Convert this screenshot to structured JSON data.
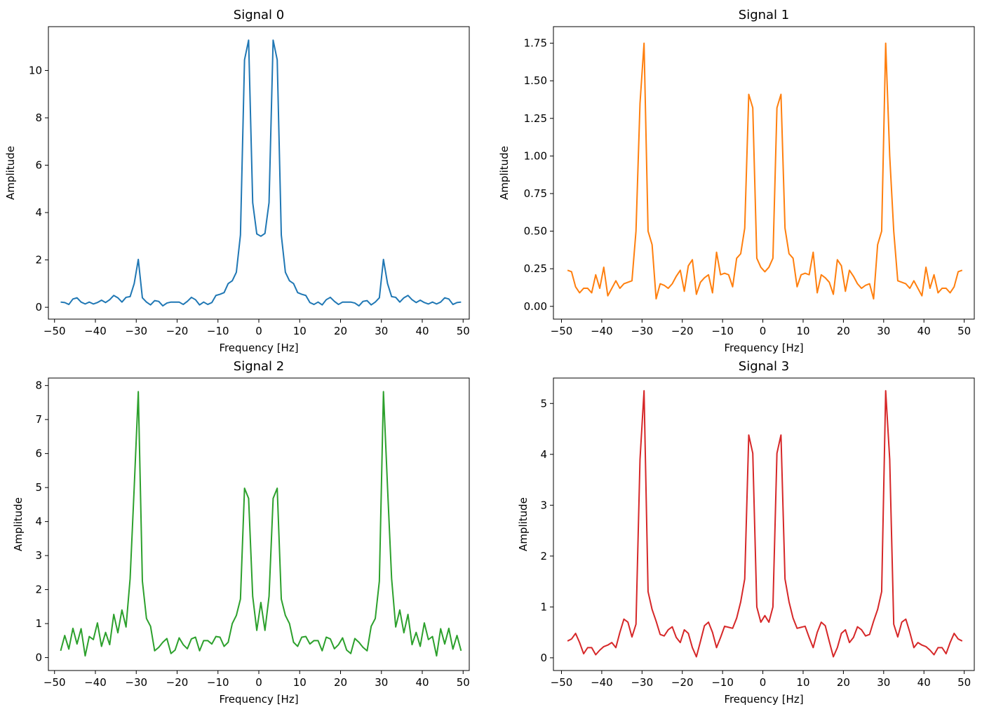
{
  "chart_data": [
    {
      "type": "line",
      "title": "Signal 0",
      "xlabel": "Frequency [Hz]",
      "ylabel": "Amplitude",
      "xlim": [
        -51.5,
        51.5
      ],
      "ylim": [
        -0.5,
        11.85
      ],
      "xticks": [
        -50,
        -40,
        -30,
        -20,
        -10,
        0,
        10,
        20,
        30,
        40,
        50
      ],
      "xtick_labels": [
        "−50",
        "−40",
        "−30",
        "−20",
        "−10",
        "0",
        "10",
        "20",
        "30",
        "40",
        "50"
      ],
      "yticks": [
        0,
        2,
        4,
        6,
        8,
        10
      ],
      "ytick_labels": [
        "0",
        "2",
        "4",
        "6",
        "8",
        "10"
      ],
      "color": "#1f77b4",
      "x": [
        -48.5,
        -47.5,
        -46.5,
        -45.5,
        -44.5,
        -43.5,
        -42.5,
        -41.5,
        -40.5,
        -39.5,
        -38.5,
        -37.5,
        -36.5,
        -35.5,
        -34.5,
        -33.5,
        -32.5,
        -31.5,
        -30.5,
        -29.5,
        -28.5,
        -27.5,
        -26.5,
        -25.5,
        -24.5,
        -23.5,
        -22.5,
        -21.5,
        -20.5,
        -19.5,
        -18.5,
        -17.5,
        -16.5,
        -15.5,
        -14.5,
        -13.5,
        -12.5,
        -11.5,
        -10.5,
        -9.5,
        -8.5,
        -7.5,
        -6.5,
        -5.5,
        -4.5,
        -3.5,
        -2.5,
        -1.5,
        -0.5,
        0.5,
        1.5,
        2.5,
        3.5,
        4.5,
        5.5,
        6.5,
        7.5,
        8.5,
        9.5,
        10.5,
        11.5,
        12.5,
        13.5,
        14.5,
        15.5,
        16.5,
        17.5,
        18.5,
        19.5,
        20.5,
        21.5,
        22.5,
        23.5,
        24.5,
        25.5,
        26.5,
        27.5,
        28.5,
        29.5,
        30.5,
        31.5,
        32.5,
        33.5,
        34.5,
        35.5,
        36.5,
        37.5,
        38.5,
        39.5,
        40.5,
        41.5,
        42.5,
        43.5,
        44.5,
        45.5,
        46.5,
        47.5,
        48.5,
        49.5
      ],
      "y": [
        0.22,
        0.2,
        0.12,
        0.35,
        0.4,
        0.22,
        0.14,
        0.22,
        0.14,
        0.2,
        0.3,
        0.2,
        0.32,
        0.5,
        0.4,
        0.22,
        0.42,
        0.45,
        1.0,
        2.02,
        0.4,
        0.22,
        0.1,
        0.28,
        0.25,
        0.06,
        0.18,
        0.22,
        0.22,
        0.22,
        0.12,
        0.25,
        0.42,
        0.32,
        0.1,
        0.22,
        0.12,
        0.2,
        0.5,
        0.55,
        0.62,
        1.0,
        1.12,
        1.48,
        3.05,
        10.45,
        11.28,
        4.42,
        3.1,
        3.0,
        3.12,
        4.42,
        11.28,
        10.45,
        3.05,
        1.48,
        1.12,
        1.0,
        0.62,
        0.55,
        0.5,
        0.2,
        0.12,
        0.22,
        0.1,
        0.32,
        0.42,
        0.25,
        0.12,
        0.22,
        0.22,
        0.22,
        0.18,
        0.06,
        0.25,
        0.28,
        0.1,
        0.22,
        0.4,
        2.02,
        1.0,
        0.45,
        0.42,
        0.22,
        0.4,
        0.5,
        0.32,
        0.2,
        0.3,
        0.2,
        0.14,
        0.22,
        0.14,
        0.22,
        0.4,
        0.35,
        0.12,
        0.2,
        0.22
      ]
    },
    {
      "type": "line",
      "title": "Signal 1",
      "xlabel": "Frequency [Hz]",
      "ylabel": "Amplitude",
      "xlim": [
        -52.0,
        52.5
      ],
      "ylim": [
        -0.085,
        1.86
      ],
      "xticks": [
        -50,
        -40,
        -30,
        -20,
        -10,
        0,
        10,
        20,
        30,
        40,
        50
      ],
      "xtick_labels": [
        "−50",
        "−40",
        "−30",
        "−20",
        "−10",
        "0",
        "10",
        "20",
        "30",
        "40",
        "50"
      ],
      "yticks": [
        0,
        0.25,
        0.5,
        0.75,
        1.0,
        1.25,
        1.5,
        1.75
      ],
      "ytick_labels": [
        "0.00",
        "0.25",
        "0.50",
        "0.75",
        "1.00",
        "1.25",
        "1.50",
        "1.75"
      ],
      "color": "#ff7f0e",
      "x": [
        -48.5,
        -47.5,
        -46.5,
        -45.5,
        -44.5,
        -43.5,
        -42.5,
        -41.5,
        -40.5,
        -39.5,
        -38.5,
        -37.5,
        -36.5,
        -35.5,
        -34.5,
        -33.5,
        -32.5,
        -31.5,
        -30.5,
        -29.5,
        -28.5,
        -27.5,
        -26.5,
        -25.5,
        -24.5,
        -23.5,
        -22.5,
        -21.5,
        -20.5,
        -19.5,
        -18.5,
        -17.5,
        -16.5,
        -15.5,
        -14.5,
        -13.5,
        -12.5,
        -11.5,
        -10.5,
        -9.5,
        -8.5,
        -7.5,
        -6.5,
        -5.5,
        -4.5,
        -3.5,
        -2.5,
        -1.5,
        -0.5,
        0.5,
        1.5,
        2.5,
        3.5,
        4.5,
        5.5,
        6.5,
        7.5,
        8.5,
        9.5,
        10.5,
        11.5,
        12.5,
        13.5,
        14.5,
        15.5,
        16.5,
        17.5,
        18.5,
        19.5,
        20.5,
        21.5,
        22.5,
        23.5,
        24.5,
        25.5,
        26.5,
        27.5,
        28.5,
        29.5,
        30.5,
        31.5,
        32.5,
        33.5,
        34.5,
        35.5,
        36.5,
        37.5,
        38.5,
        39.5,
        40.5,
        41.5,
        42.5,
        43.5,
        44.5,
        45.5,
        46.5,
        47.5,
        48.5,
        49.5
      ],
      "y": [
        0.24,
        0.23,
        0.13,
        0.09,
        0.12,
        0.12,
        0.09,
        0.21,
        0.12,
        0.26,
        0.07,
        0.12,
        0.17,
        0.12,
        0.15,
        0.16,
        0.17,
        0.5,
        1.35,
        1.75,
        0.5,
        0.41,
        0.05,
        0.15,
        0.14,
        0.12,
        0.15,
        0.2,
        0.24,
        0.1,
        0.27,
        0.31,
        0.08,
        0.16,
        0.19,
        0.21,
        0.09,
        0.36,
        0.21,
        0.22,
        0.21,
        0.13,
        0.32,
        0.35,
        0.52,
        1.41,
        1.32,
        0.32,
        0.26,
        0.23,
        0.26,
        0.32,
        1.32,
        1.41,
        0.52,
        0.35,
        0.32,
        0.13,
        0.21,
        0.22,
        0.21,
        0.36,
        0.09,
        0.21,
        0.19,
        0.16,
        0.08,
        0.31,
        0.27,
        0.1,
        0.24,
        0.2,
        0.15,
        0.12,
        0.14,
        0.15,
        0.05,
        0.41,
        0.5,
        1.75,
        1.0,
        0.5,
        0.17,
        0.16,
        0.15,
        0.12,
        0.17,
        0.12,
        0.07,
        0.26,
        0.12,
        0.21,
        0.09,
        0.12,
        0.12,
        0.09,
        0.13,
        0.23,
        0.24
      ]
    },
    {
      "type": "line",
      "title": "Signal 2",
      "xlabel": "Frequency [Hz]",
      "ylabel": "Amplitude",
      "xlim": [
        -51.5,
        51.5
      ],
      "ylim": [
        -0.38,
        8.22
      ],
      "xticks": [
        -50,
        -40,
        -30,
        -20,
        -10,
        0,
        10,
        20,
        30,
        40,
        50
      ],
      "xtick_labels": [
        "−50",
        "−40",
        "−30",
        "−20",
        "−10",
        "0",
        "10",
        "20",
        "30",
        "40",
        "50"
      ],
      "yticks": [
        0,
        1,
        2,
        3,
        4,
        5,
        6,
        7,
        8
      ],
      "ytick_labels": [
        "0",
        "1",
        "2",
        "3",
        "4",
        "5",
        "6",
        "7",
        "8"
      ],
      "color": "#2ca02c",
      "x": [
        -48.5,
        -47.5,
        -46.5,
        -45.5,
        -44.5,
        -43.5,
        -42.5,
        -41.5,
        -40.5,
        -39.5,
        -38.5,
        -37.5,
        -36.5,
        -35.5,
        -34.5,
        -33.5,
        -32.5,
        -31.5,
        -30.5,
        -29.5,
        -28.5,
        -27.5,
        -26.5,
        -25.5,
        -24.5,
        -23.5,
        -22.5,
        -21.5,
        -20.5,
        -19.5,
        -18.5,
        -17.5,
        -16.5,
        -15.5,
        -14.5,
        -13.5,
        -12.5,
        -11.5,
        -10.5,
        -9.5,
        -8.5,
        -7.5,
        -6.5,
        -5.5,
        -4.5,
        -3.5,
        -2.5,
        -1.5,
        -0.5,
        0.5,
        1.5,
        2.5,
        3.5,
        4.5,
        5.5,
        6.5,
        7.5,
        8.5,
        9.5,
        10.5,
        11.5,
        12.5,
        13.5,
        14.5,
        15.5,
        16.5,
        17.5,
        18.5,
        19.5,
        20.5,
        21.5,
        22.5,
        23.5,
        24.5,
        25.5,
        26.5,
        27.5,
        28.5,
        29.5,
        30.5,
        31.5,
        32.5,
        33.5,
        34.5,
        35.5,
        36.5,
        37.5,
        38.5,
        39.5,
        40.5,
        41.5,
        42.5,
        43.5,
        44.5,
        45.5,
        46.5,
        47.5,
        48.5,
        49.5
      ],
      "y": [
        0.2,
        0.65,
        0.25,
        0.86,
        0.4,
        0.85,
        0.05,
        0.62,
        0.53,
        1.02,
        0.33,
        0.74,
        0.38,
        1.27,
        0.73,
        1.4,
        0.9,
        2.32,
        5.0,
        7.82,
        2.25,
        1.15,
        0.92,
        0.2,
        0.3,
        0.45,
        0.56,
        0.12,
        0.22,
        0.58,
        0.38,
        0.26,
        0.55,
        0.6,
        0.2,
        0.5,
        0.5,
        0.4,
        0.62,
        0.6,
        0.33,
        0.45,
        1.0,
        1.24,
        1.72,
        4.98,
        4.68,
        1.8,
        0.8,
        1.62,
        0.8,
        1.8,
        4.68,
        4.98,
        1.72,
        1.24,
        1.0,
        0.45,
        0.33,
        0.6,
        0.62,
        0.4,
        0.5,
        0.5,
        0.2,
        0.6,
        0.55,
        0.26,
        0.38,
        0.58,
        0.22,
        0.12,
        0.56,
        0.45,
        0.3,
        0.2,
        0.92,
        1.15,
        2.25,
        7.82,
        5.0,
        2.32,
        0.9,
        1.4,
        0.73,
        1.27,
        0.38,
        0.74,
        0.33,
        1.02,
        0.53,
        0.62,
        0.05,
        0.85,
        0.4,
        0.86,
        0.25,
        0.65,
        0.2
      ]
    },
    {
      "type": "line",
      "title": "Signal 3",
      "xlabel": "Frequency [Hz]",
      "ylabel": "Amplitude",
      "xlim": [
        -52.0,
        52.5
      ],
      "ylim": [
        -0.25,
        5.5
      ],
      "xticks": [
        -50,
        -40,
        -30,
        -20,
        -10,
        0,
        10,
        20,
        30,
        40,
        50
      ],
      "xtick_labels": [
        "−50",
        "−40",
        "−30",
        "−20",
        "−10",
        "0",
        "10",
        "20",
        "30",
        "40",
        "50"
      ],
      "yticks": [
        0,
        1,
        2,
        3,
        4,
        5
      ],
      "ytick_labels": [
        "0",
        "1",
        "2",
        "3",
        "4",
        "5"
      ],
      "color": "#d62728",
      "x": [
        -48.5,
        -47.5,
        -46.5,
        -45.5,
        -44.5,
        -43.5,
        -42.5,
        -41.5,
        -40.5,
        -39.5,
        -38.5,
        -37.5,
        -36.5,
        -35.5,
        -34.5,
        -33.5,
        -32.5,
        -31.5,
        -30.5,
        -29.5,
        -28.5,
        -27.5,
        -26.5,
        -25.5,
        -24.5,
        -23.5,
        -22.5,
        -21.5,
        -20.5,
        -19.5,
        -18.5,
        -17.5,
        -16.5,
        -15.5,
        -14.5,
        -13.5,
        -12.5,
        -11.5,
        -10.5,
        -9.5,
        -8.5,
        -7.5,
        -6.5,
        -5.5,
        -4.5,
        -3.5,
        -2.5,
        -1.5,
        -0.5,
        0.5,
        1.5,
        2.5,
        3.5,
        4.5,
        5.5,
        6.5,
        7.5,
        8.5,
        9.5,
        10.5,
        11.5,
        12.5,
        13.5,
        14.5,
        15.5,
        16.5,
        17.5,
        18.5,
        19.5,
        20.5,
        21.5,
        22.5,
        23.5,
        24.5,
        25.5,
        26.5,
        27.5,
        28.5,
        29.5,
        30.5,
        31.5,
        32.5,
        33.5,
        34.5,
        35.5,
        36.5,
        37.5,
        38.5,
        39.5,
        40.5,
        41.5,
        42.5,
        43.5,
        44.5,
        45.5,
        46.5,
        47.5,
        48.5,
        49.5
      ],
      "y": [
        0.33,
        0.37,
        0.48,
        0.3,
        0.08,
        0.2,
        0.2,
        0.06,
        0.15,
        0.22,
        0.25,
        0.3,
        0.2,
        0.5,
        0.76,
        0.7,
        0.41,
        0.66,
        3.9,
        5.25,
        1.3,
        0.95,
        0.72,
        0.46,
        0.43,
        0.55,
        0.61,
        0.4,
        0.3,
        0.55,
        0.48,
        0.2,
        0.02,
        0.32,
        0.63,
        0.7,
        0.5,
        0.2,
        0.4,
        0.62,
        0.6,
        0.58,
        0.78,
        1.1,
        1.55,
        4.38,
        4.02,
        1.0,
        0.7,
        0.83,
        0.7,
        1.0,
        4.02,
        4.38,
        1.55,
        1.1,
        0.78,
        0.58,
        0.6,
        0.62,
        0.4,
        0.2,
        0.5,
        0.7,
        0.63,
        0.32,
        0.02,
        0.2,
        0.48,
        0.55,
        0.3,
        0.4,
        0.61,
        0.55,
        0.43,
        0.46,
        0.72,
        0.95,
        1.3,
        5.25,
        3.9,
        0.66,
        0.41,
        0.7,
        0.76,
        0.5,
        0.2,
        0.3,
        0.25,
        0.22,
        0.15,
        0.06,
        0.2,
        0.2,
        0.08,
        0.3,
        0.48,
        0.37,
        0.33
      ]
    }
  ]
}
